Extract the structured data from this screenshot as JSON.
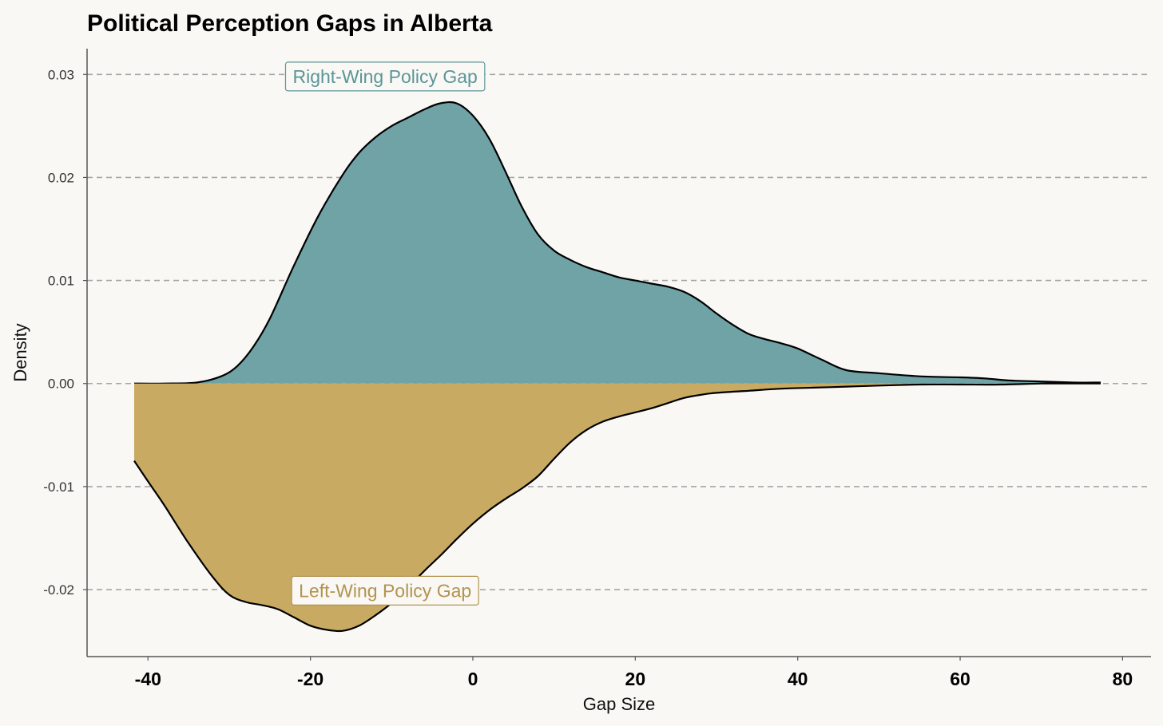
{
  "chart_data": {
    "type": "area",
    "title": "Political Perception Gaps in Alberta",
    "xlabel": "Gap Size",
    "ylabel": "Density",
    "xlim": [
      -47.5,
      83.5
    ],
    "ylim": [
      -0.0265,
      0.0325
    ],
    "xticks": [
      -40,
      -20,
      0,
      20,
      40,
      60,
      80
    ],
    "xtick_labels": [
      "-40",
      "-20",
      "0",
      "20",
      "40",
      "60",
      "80"
    ],
    "yticks": [
      -0.02,
      -0.01,
      0.0,
      0.01,
      0.02,
      0.03
    ],
    "ytick_labels": [
      "-0.02",
      "-0.01",
      "0.00",
      "0.01",
      "0.02",
      "0.03"
    ],
    "grid": "horizontal dashed",
    "series": [
      {
        "name": "Right-Wing Policy Gap",
        "color": "#6fa3a6",
        "label_color": "#5b9598",
        "label_at": [
          -10.8,
          0.0298
        ],
        "x": [
          -41.7,
          -38,
          -34,
          -31,
          -29,
          -27,
          -25,
          -22,
          -19,
          -16,
          -14,
          -12,
          -10,
          -8,
          -6,
          -4,
          -2,
          0,
          2,
          4,
          6,
          8,
          10,
          12,
          14,
          16,
          18,
          20,
          22,
          24,
          26,
          28,
          30,
          32,
          34,
          36,
          38,
          40,
          43,
          46,
          50,
          55,
          60,
          63,
          66,
          70,
          74,
          77.3
        ],
        "values": [
          0.0,
          0.0,
          0.0001,
          0.0007,
          0.0017,
          0.0036,
          0.0063,
          0.0115,
          0.0163,
          0.0203,
          0.0224,
          0.0239,
          0.025,
          0.0258,
          0.0266,
          0.0272,
          0.0272,
          0.026,
          0.0238,
          0.0206,
          0.0172,
          0.0145,
          0.0129,
          0.012,
          0.0113,
          0.0108,
          0.0103,
          0.01,
          0.0097,
          0.0094,
          0.0089,
          0.008,
          0.0068,
          0.0057,
          0.0048,
          0.0043,
          0.0039,
          0.0034,
          0.0023,
          0.0013,
          0.001,
          0.0007,
          0.0006,
          0.0005,
          0.0003,
          0.0002,
          0.0001,
          0.0001
        ]
      },
      {
        "name": "Left-Wing Policy Gap",
        "color": "#c9aa63",
        "label_color": "#b39350",
        "label_at": [
          -10.8,
          -0.0201
        ],
        "x": [
          -41.7,
          -40,
          -38,
          -35,
          -32,
          -30,
          -28,
          -26,
          -24,
          -22,
          -20,
          -18,
          -16,
          -14,
          -12,
          -10,
          -8,
          -6,
          -4,
          -2,
          0,
          2,
          4,
          6,
          8,
          10,
          12,
          14,
          16,
          18,
          20,
          22,
          24,
          26,
          28,
          30,
          34,
          38,
          42,
          46,
          50,
          55,
          60,
          65,
          70,
          74,
          77.3
        ],
        "values": [
          -0.0075,
          -0.0095,
          -0.0118,
          -0.0155,
          -0.0188,
          -0.0205,
          -0.0212,
          -0.0215,
          -0.0219,
          -0.0227,
          -0.0235,
          -0.0239,
          -0.024,
          -0.0235,
          -0.0225,
          -0.0213,
          -0.0198,
          -0.0182,
          -0.0167,
          -0.0151,
          -0.0136,
          -0.0123,
          -0.0112,
          -0.0102,
          -0.009,
          -0.0073,
          -0.0057,
          -0.0045,
          -0.0037,
          -0.0032,
          -0.0028,
          -0.0024,
          -0.0019,
          -0.0014,
          -0.0011,
          -0.0009,
          -0.0007,
          -0.0005,
          -0.0004,
          -0.0003,
          -0.0002,
          -0.0001,
          -0.0001,
          -0.0001,
          0.0,
          0.0,
          0.0
        ]
      }
    ]
  }
}
